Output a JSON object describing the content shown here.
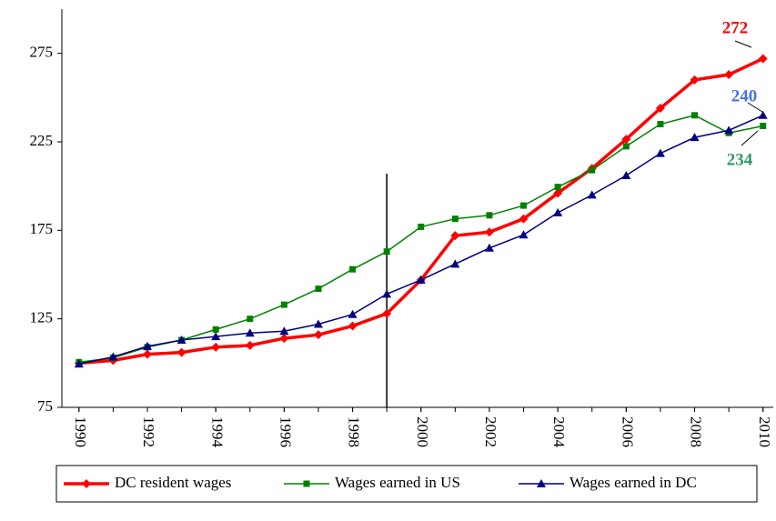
{
  "chart_data": {
    "type": "line",
    "x": [
      1990,
      1991,
      1992,
      1993,
      1994,
      1995,
      1996,
      1997,
      1998,
      1999,
      2000,
      2001,
      2002,
      2003,
      2004,
      2005,
      2006,
      2007,
      2008,
      2009,
      2010
    ],
    "series": [
      {
        "name": "DC resident wages",
        "color": "#ff0000",
        "marker": "diamond",
        "label_color": "#ff0000",
        "values": [
          100,
          101.5,
          105,
          106,
          109,
          110,
          114,
          116,
          121,
          128,
          147,
          172,
          174,
          181.5,
          196,
          210,
          226.5,
          244,
          260,
          263,
          272
        ]
      },
      {
        "name": "Wages earned in US",
        "color": "#008000",
        "marker": "square",
        "label_color": "#339966",
        "values": [
          100.5,
          103,
          109,
          113,
          119,
          125,
          133,
          142,
          153,
          163,
          177,
          181.5,
          183.5,
          189,
          199.5,
          209,
          222.5,
          235,
          240,
          230,
          234
        ]
      },
      {
        "name": "Wages earned in DC",
        "color": "#000080",
        "marker": "triangle",
        "label_color": "#4a6fe8",
        "values": [
          99.5,
          103.5,
          109.5,
          113,
          115,
          117,
          118,
          122,
          127.5,
          139,
          147,
          156,
          165,
          172.5,
          185,
          195,
          206,
          218.5,
          227.5,
          231.5,
          240
        ]
      }
    ],
    "xlim": [
      1989.5,
      2010.3
    ],
    "xticks": [
      1990,
      1992,
      1994,
      1996,
      1998,
      2000,
      2002,
      2004,
      2006,
      2008,
      2010
    ],
    "ylim": [
      75,
      300
    ],
    "yticks": [
      75,
      125,
      175,
      225,
      275
    ],
    "vline": {
      "x": 1999,
      "y": [
        75,
        207
      ]
    },
    "legend": "bottom"
  }
}
